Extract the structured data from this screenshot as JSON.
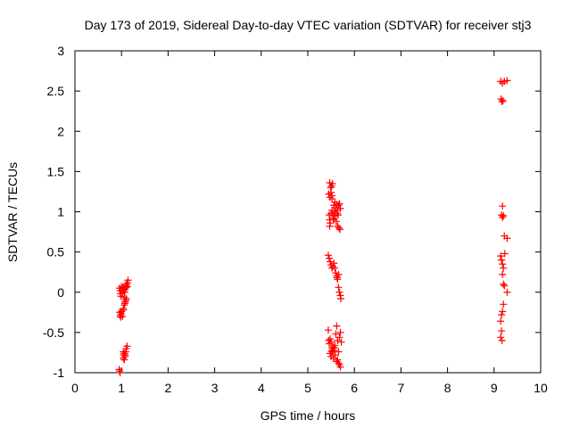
{
  "chart_data": {
    "type": "scatter",
    "title": "Day 173 of 2019, Sidereal Day-to-day VTEC variation (SDTVAR) for receiver stj3",
    "xlabel": "GPS time / hours",
    "ylabel": "SDTVAR / TECUs",
    "xlim": [
      0,
      10
    ],
    "ylim": [
      -1,
      3
    ],
    "x_ticks": [
      0,
      1,
      2,
      3,
      4,
      5,
      6,
      7,
      8,
      9,
      10
    ],
    "y_ticks": [
      -1,
      -0.5,
      0,
      0.5,
      1,
      1.5,
      2,
      2.5,
      3
    ],
    "x_tick_labels": [
      "0",
      "1",
      "2",
      "3",
      "4",
      "5",
      "6",
      "7",
      "8",
      "9",
      "10"
    ],
    "y_tick_labels": [
      "-1",
      "-0.5",
      "0",
      "0.5",
      "1",
      "1.5",
      "2",
      "2.5",
      "3"
    ],
    "grid": false,
    "marker": "+",
    "color": "#ff0000",
    "series": [
      {
        "name": "SDTVAR",
        "points": [
          [
            0.96,
            0.05
          ],
          [
            0.97,
            0.02
          ],
          [
            0.98,
            -0.02
          ],
          [
            0.99,
            -0.05
          ],
          [
            1.0,
            0.07
          ],
          [
            1.01,
            0.03
          ],
          [
            1.02,
            0.0
          ],
          [
            1.03,
            0.06
          ],
          [
            1.04,
            0.02
          ],
          [
            1.05,
            0.05
          ],
          [
            1.06,
            0.03
          ],
          [
            1.07,
            0.0
          ],
          [
            1.08,
            0.04
          ],
          [
            1.09,
            0.08
          ],
          [
            1.1,
            0.06
          ],
          [
            1.11,
            0.1
          ],
          [
            1.12,
            0.07
          ],
          [
            1.13,
            0.12
          ],
          [
            1.14,
            0.15
          ],
          [
            1.06,
            -0.06
          ],
          [
            0.96,
            -0.25
          ],
          [
            0.97,
            -0.29
          ],
          [
            0.98,
            -0.31
          ],
          [
            0.99,
            -0.27
          ],
          [
            1.0,
            -0.24
          ],
          [
            1.02,
            -0.3
          ],
          [
            1.04,
            -0.2
          ],
          [
            1.06,
            -0.16
          ],
          [
            1.08,
            -0.12
          ],
          [
            1.09,
            -0.1
          ],
          [
            1.1,
            -0.08
          ],
          [
            1.04,
            -0.22
          ],
          [
            1.07,
            -0.14
          ],
          [
            0.95,
            -0.96
          ],
          [
            0.96,
            -0.98
          ],
          [
            0.97,
            -1.0
          ],
          [
            1.04,
            -0.82
          ],
          [
            1.05,
            -0.78
          ],
          [
            1.06,
            -0.76
          ],
          [
            1.07,
            -0.8
          ],
          [
            1.08,
            -0.78
          ],
          [
            1.09,
            -0.74
          ],
          [
            1.1,
            -0.7
          ],
          [
            1.12,
            -0.67
          ],
          [
            1.04,
            -0.74
          ],
          [
            1.06,
            -0.84
          ],
          [
            5.47,
            1.36
          ],
          [
            5.49,
            1.3
          ],
          [
            5.5,
            1.24
          ],
          [
            5.51,
            1.32
          ],
          [
            5.52,
            1.2
          ],
          [
            5.45,
            1.22
          ],
          [
            5.48,
            1.18
          ],
          [
            5.53,
            1.35
          ],
          [
            5.52,
            1.16
          ],
          [
            5.46,
            0.96
          ],
          [
            5.47,
            0.9
          ],
          [
            5.48,
            0.86
          ],
          [
            5.5,
            0.98
          ],
          [
            5.52,
            1.02
          ],
          [
            5.54,
            0.96
          ],
          [
            5.56,
            1.08
          ],
          [
            5.58,
            1.12
          ],
          [
            5.6,
            1.05
          ],
          [
            5.62,
            1.09
          ],
          [
            5.64,
            1.02
          ],
          [
            5.66,
            1.08
          ],
          [
            5.68,
            1.1
          ],
          [
            5.7,
            1.04
          ],
          [
            5.55,
            0.92
          ],
          [
            5.57,
            1.0
          ],
          [
            5.59,
            0.95
          ],
          [
            5.61,
            0.88
          ],
          [
            5.63,
            0.98
          ],
          [
            5.65,
            0.96
          ],
          [
            5.67,
            0.8
          ],
          [
            5.69,
            0.78
          ],
          [
            5.64,
            0.82
          ],
          [
            5.56,
            0.9
          ],
          [
            5.47,
            0.82
          ],
          [
            5.44,
            0.46
          ],
          [
            5.46,
            0.42
          ],
          [
            5.48,
            0.38
          ],
          [
            5.5,
            0.34
          ],
          [
            5.52,
            0.3
          ],
          [
            5.54,
            0.32
          ],
          [
            5.56,
            0.36
          ],
          [
            5.58,
            0.3
          ],
          [
            5.62,
            0.2
          ],
          [
            5.64,
            0.16
          ],
          [
            5.66,
            0.22
          ],
          [
            5.6,
            0.24
          ],
          [
            5.63,
            0.18
          ],
          [
            5.66,
            0.06
          ],
          [
            5.68,
            0.0
          ],
          [
            5.7,
            -0.04
          ],
          [
            5.71,
            -0.08
          ],
          [
            5.44,
            -0.47
          ],
          [
            5.45,
            -0.6
          ],
          [
            5.46,
            -0.64
          ],
          [
            5.48,
            -0.58
          ],
          [
            5.5,
            -0.62
          ],
          [
            5.52,
            -0.7
          ],
          [
            5.54,
            -0.68
          ],
          [
            5.56,
            -0.72
          ],
          [
            5.58,
            -0.66
          ],
          [
            5.6,
            -0.52
          ],
          [
            5.62,
            -0.42
          ],
          [
            5.64,
            -0.6
          ],
          [
            5.66,
            -0.74
          ],
          [
            5.68,
            -0.56
          ],
          [
            5.7,
            -0.5
          ],
          [
            5.72,
            -0.62
          ],
          [
            5.48,
            -0.76
          ],
          [
            5.5,
            -0.8
          ],
          [
            5.53,
            -0.74
          ],
          [
            5.55,
            -0.82
          ],
          [
            5.59,
            -0.78
          ],
          [
            5.62,
            -0.86
          ],
          [
            5.64,
            -0.84
          ],
          [
            5.66,
            -0.88
          ],
          [
            5.68,
            -0.9
          ],
          [
            5.7,
            -0.93
          ],
          [
            5.57,
            -0.69
          ],
          [
            5.51,
            -0.73
          ],
          [
            9.14,
            2.62
          ],
          [
            9.18,
            2.6
          ],
          [
            9.22,
            2.62
          ],
          [
            9.28,
            2.63
          ],
          [
            9.15,
            2.4
          ],
          [
            9.17,
            2.37
          ],
          [
            9.19,
            2.38
          ],
          [
            9.18,
            1.07
          ],
          [
            9.16,
            0.96
          ],
          [
            9.18,
            0.93
          ],
          [
            9.2,
            0.95
          ],
          [
            9.22,
            0.7
          ],
          [
            9.28,
            0.67
          ],
          [
            9.14,
            0.45
          ],
          [
            9.16,
            0.4
          ],
          [
            9.18,
            0.35
          ],
          [
            9.2,
            0.3
          ],
          [
            9.23,
            0.48
          ],
          [
            9.18,
            0.22
          ],
          [
            9.2,
            0.1
          ],
          [
            9.22,
            0.08
          ],
          [
            9.28,
            0.0
          ],
          [
            9.2,
            -0.15
          ],
          [
            9.18,
            -0.24
          ],
          [
            9.16,
            -0.28
          ],
          [
            9.14,
            -0.36
          ],
          [
            9.16,
            -0.48
          ],
          [
            9.14,
            -0.56
          ],
          [
            9.17,
            -0.6
          ]
        ]
      }
    ]
  }
}
